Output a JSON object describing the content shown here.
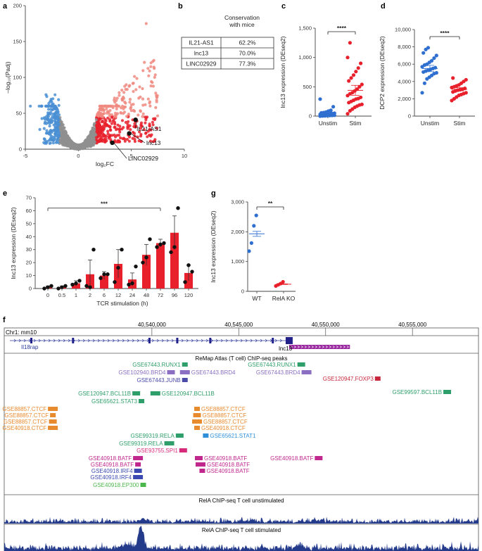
{
  "panel_letters": [
    "a",
    "b",
    "c",
    "d",
    "e",
    "f",
    "g"
  ],
  "colors": {
    "red": "#e8202b",
    "light_red": "#f08a80",
    "blue": "#2f6fd0",
    "light_blue": "#4a8fd4",
    "grey": "#8f8f8f",
    "navy": "#22228a",
    "purple": "#9a2aa0"
  },
  "chart_data": [
    {
      "panel": "a",
      "type": "scatter",
      "xlabel": "log₂FC",
      "ylabel": "–log₁₀(Padj)",
      "xlim": [
        -5,
        10
      ],
      "ylim": [
        0,
        200
      ],
      "xticks": [
        -5,
        0,
        5,
        10
      ],
      "yticks": [
        0,
        50,
        100,
        150,
        200
      ],
      "highlighted": [
        {
          "name": "IL21-AS1",
          "x": 5.4,
          "y": 41
        },
        {
          "name": "lnc13",
          "x": 4.8,
          "y": 22
        },
        {
          "name": "LINC02929",
          "x": 3.2,
          "y": 9
        }
      ]
    },
    {
      "panel": "b",
      "type": "table",
      "header": "Conservation with mice",
      "rows": [
        {
          "gene": "IL21-AS1",
          "value": "62.2%"
        },
        {
          "gene": "lnc13",
          "value": "70.0%"
        },
        {
          "gene": "LINC02929",
          "value": "77.3%"
        }
      ]
    },
    {
      "panel": "c",
      "type": "scatter",
      "ylabel": "lnc13 expression (DEseq2)",
      "categories": [
        "Unstim",
        "Stim"
      ],
      "ylim": [
        0,
        1500
      ],
      "yticks": [
        "0",
        "500",
        "1,000",
        "1,500"
      ],
      "significance": "****",
      "series": [
        {
          "name": "Unstim",
          "values": [
            0,
            2,
            5,
            8,
            10,
            12,
            14,
            16,
            18,
            20,
            22,
            25,
            28,
            30,
            32,
            35,
            38,
            40,
            45,
            50,
            55,
            60,
            70,
            85,
            100,
            160,
            290
          ],
          "mean": 50
        },
        {
          "name": "Stim",
          "values": [
            40,
            90,
            120,
            150,
            170,
            190,
            200,
            230,
            250,
            270,
            290,
            300,
            320,
            350,
            380,
            400,
            430,
            460,
            500,
            540,
            600,
            650,
            700,
            760,
            820,
            900,
            1000,
            1250
          ],
          "mean": 440
        }
      ]
    },
    {
      "panel": "d",
      "type": "scatter",
      "ylabel": "DCP2 expression (DEseq2)",
      "categories": [
        "Unstim",
        "Stim"
      ],
      "ylim": [
        0,
        10000
      ],
      "yticks": [
        "0",
        "2,000",
        "4,000",
        "6,000",
        "8,000",
        "10,000"
      ],
      "significance": "****",
      "series": [
        {
          "name": "Unstim",
          "values": [
            2700,
            3800,
            4300,
            4500,
            4700,
            4900,
            5000,
            5100,
            5200,
            5300,
            5400,
            5500,
            5600,
            5700,
            5900,
            6000,
            6200,
            6400,
            6700,
            7000,
            7300,
            7700,
            7900
          ],
          "mean": 5500
        },
        {
          "name": "Stim",
          "values": [
            1800,
            2000,
            2200,
            2400,
            2500,
            2600,
            2700,
            2800,
            2900,
            3000,
            3050,
            3100,
            3200,
            3300,
            3400,
            3500,
            3600,
            3800,
            4000,
            4200,
            4400
          ],
          "mean": 3100
        }
      ]
    },
    {
      "panel": "e",
      "type": "bar",
      "xlabel": "TCR stimulation (h)",
      "ylabel": "lnc13 expression (DEseq2)",
      "categories": [
        "0",
        "0.5",
        "1",
        "2",
        "6",
        "12",
        "24",
        "48",
        "72",
        "96",
        "120"
      ],
      "values": [
        1,
        1,
        4,
        11,
        10,
        19,
        7,
        26,
        35,
        43,
        12
      ],
      "errors": [
        1,
        1,
        2,
        11,
        3,
        11,
        5,
        8,
        3,
        13,
        6
      ],
      "points": [
        [
          0,
          1,
          2
        ],
        [
          0,
          1,
          2
        ],
        [
          3,
          4,
          6
        ],
        [
          2,
          1,
          30
        ],
        [
          8,
          11,
          11
        ],
        [
          5,
          16,
          30
        ],
        [
          3,
          4,
          17
        ],
        [
          20,
          24,
          38
        ],
        [
          32,
          34,
          35
        ],
        [
          28,
          32,
          62
        ],
        [
          5,
          18,
          13
        ]
      ],
      "ylim": [
        0,
        70
      ],
      "yticks": [
        0,
        10,
        20,
        30,
        40,
        50,
        60,
        70
      ],
      "significance": "***"
    },
    {
      "panel": "g",
      "type": "scatter",
      "ylabel": "lnc13 expression (DEseq2)",
      "categories": [
        "WT",
        "RelA KO"
      ],
      "ylim": [
        0,
        3000
      ],
      "yticks": [
        "0",
        "1,000",
        "2,000",
        "3,000"
      ],
      "significance": "**",
      "series": [
        {
          "name": "WT",
          "values": [
            1350,
            1620,
            2200,
            2550
          ],
          "mean": 1930
        },
        {
          "name": "RelA KO",
          "values": [
            180,
            220,
            260,
            320
          ],
          "mean": 240
        }
      ]
    }
  ],
  "panel_f": {
    "chrom": "Chr1: mm10",
    "coords": [
      {
        "label": "40,540,000",
        "bp": 40540000
      },
      {
        "label": "40,545,000",
        "bp": 40545000
      },
      {
        "label": "40,550,000",
        "bp": 40550000
      },
      {
        "label": "40,555,000",
        "bp": 40555000
      }
    ],
    "genes": {
      "il18rap": "Il18rap",
      "lnc13": "lnc13"
    },
    "remap_title": "ReMap Atlas (T cell) ChIP-seq peaks",
    "peaks": [
      {
        "label": "GSE67443.RUNX1",
        "color": "#2e9e6a",
        "bp": 40541900
      },
      {
        "label": "GSE102940.BRD4",
        "color": "#8a6fc2",
        "bp": 40541100
      },
      {
        "label": "GSE67443.BRD4",
        "color": "#8a6fc2",
        "bp": 40541900
      },
      {
        "label": "GSE67443.JUNB",
        "color": "#4a4aa8",
        "bp": 40541900
      },
      {
        "label": "GSE67443.RUNX1",
        "color": "#2e9e6a",
        "bp": 40548600
      },
      {
        "label": "GSE67443.BRD4",
        "color": "#8a6fc2",
        "bp": 40548900
      },
      {
        "label": "GSE120947.FOXP3",
        "color": "#c8283c",
        "bp": 40553000
      },
      {
        "label": "GSE120947.BCL11B",
        "color": "#2e9e6a",
        "bp": 40539100
      },
      {
        "label": "GSE120947.BCL11B",
        "color": "#2e9e6a",
        "bp": 40540200
      },
      {
        "label": "GSE65621.STAT3",
        "color": "#2e9e6a",
        "bp": 40539400
      },
      {
        "label": "GSE99597.BCL11B",
        "color": "#2e9e6a",
        "bp": 40557000
      },
      {
        "label": "GSE88857.CTCF",
        "color": "#e88a2e",
        "bp": 40534300
      },
      {
        "label": "GSE88857.CTCF",
        "color": "#e88a2e",
        "bp": 40534300
      },
      {
        "label": "GSE88857.CTCF",
        "color": "#e88a2e",
        "bp": 40534300
      },
      {
        "label": "GSE40918.CTCF",
        "color": "#e88a2e",
        "bp": 40534300
      },
      {
        "label": "GSE88857.CTCF",
        "color": "#e88a2e",
        "bp": 40542600
      },
      {
        "label": "GSE88857.CTCF",
        "color": "#e88a2e",
        "bp": 40542600
      },
      {
        "label": "GSE88857.CTCF",
        "color": "#e88a2e",
        "bp": 40542600
      },
      {
        "label": "GSE40918.CTCF",
        "color": "#e88a2e",
        "bp": 40542600
      },
      {
        "label": "GSE99319.RELA",
        "color": "#2e9e6a",
        "bp": 40541600
      },
      {
        "label": "GSE99319.RELA",
        "color": "#2e9e6a",
        "bp": 40541000
      },
      {
        "label": "GSE65621.STAT1",
        "color": "#2f8fd8",
        "bp": 40543100
      },
      {
        "label": "GSE93755.SPI1",
        "color": "#d82a7a",
        "bp": 40541800
      },
      {
        "label": "GSE40918.BATF",
        "color": "#c0288e",
        "bp": 40539200
      },
      {
        "label": "GSE40918.BATF",
        "color": "#c0288e",
        "bp": 40539200
      },
      {
        "label": "GSE40918.IRF4",
        "color": "#3a4ab0",
        "bp": 40539200
      },
      {
        "label": "GSE40918.IRF4",
        "color": "#3a4ab0",
        "bp": 40539200
      },
      {
        "label": "GSE40918.EP300",
        "color": "#4cb84c",
        "bp": 40539500
      },
      {
        "label": "GSE40918.BATF",
        "color": "#c0288e",
        "bp": 40542700
      },
      {
        "label": "GSE40918.BATF",
        "color": "#c0288e",
        "bp": 40542800
      },
      {
        "label": "GSE40918.BATF",
        "color": "#c0288e",
        "bp": 40542900
      },
      {
        "label": "GSE40918.BATF",
        "color": "#c0288e",
        "bp": 40549600
      }
    ],
    "track1_title": "RelA ChIP-seq T cell unstimulated",
    "track2_title": "RelA ChIP-seq T cell stimulated",
    "signal_color": "#243b8c"
  }
}
